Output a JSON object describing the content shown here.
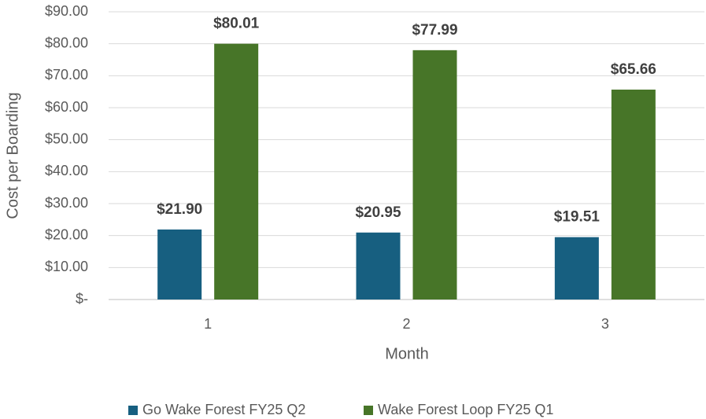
{
  "chart_data": {
    "type": "bar",
    "categories": [
      "1",
      "2",
      "3"
    ],
    "series": [
      {
        "name": "Go Wake Forest FY25 Q2",
        "color": "#175f80",
        "values": [
          21.9,
          20.95,
          19.51
        ],
        "value_labels": [
          "$21.90",
          "$20.95",
          "$19.51"
        ]
      },
      {
        "name": "Wake Forest Loop FY25 Q1",
        "color": "#477528",
        "values": [
          80.01,
          77.99,
          65.66
        ],
        "value_labels": [
          "$80.01",
          "$77.99",
          "$65.66"
        ]
      }
    ],
    "ylim": [
      0,
      90
    ],
    "yticks": [
      {
        "value": 0,
        "label": "$-"
      },
      {
        "value": 10,
        "label": "$10.00"
      },
      {
        "value": 20,
        "label": "$20.00"
      },
      {
        "value": 30,
        "label": "$30.00"
      },
      {
        "value": 40,
        "label": "$40.00"
      },
      {
        "value": 50,
        "label": "$50.00"
      },
      {
        "value": 60,
        "label": "$60.00"
      },
      {
        "value": 70,
        "label": "$70.00"
      },
      {
        "value": 80,
        "label": "$80.00"
      },
      {
        "value": 90,
        "label": "$90.00"
      }
    ],
    "xlabel": "Month",
    "ylabel": "Cost per Boarding",
    "grid": true,
    "legend": "bottom"
  }
}
